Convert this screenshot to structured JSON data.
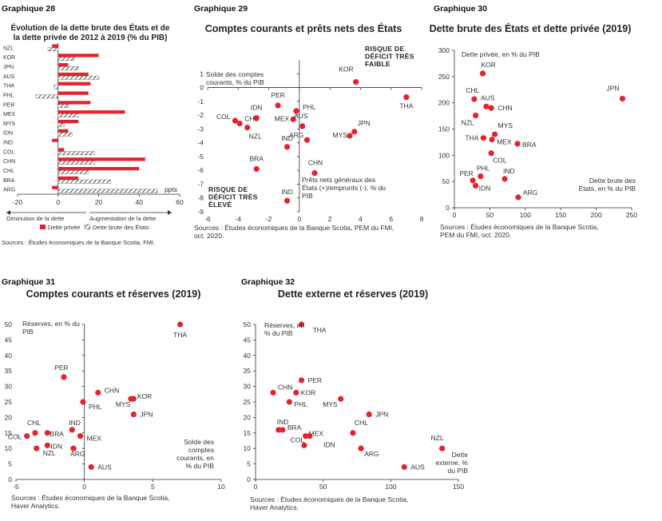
{
  "colors": {
    "red": "#e3232e",
    "hatch": "#555555"
  },
  "chart_data": [
    {
      "id": "g28",
      "number": "Graphique 28",
      "type": "bar",
      "orientation": "horizontal",
      "title_lines": [
        "Évolution de la dette brute des États et de",
        "la dette privée de 2012 à 2019 (% du PIB)"
      ],
      "categories": [
        "NZL",
        "KOR",
        "JPN",
        "AUS",
        "THA",
        "PHL",
        "PER",
        "MEX",
        "MYS",
        "IDN",
        "IND",
        "COL",
        "CHN",
        "CHL",
        "BRA",
        "ARG"
      ],
      "series": [
        {
          "name": "Dette privée",
          "values": [
            -3,
            20,
            5,
            15,
            16,
            15,
            16,
            33,
            10,
            5,
            -3,
            3,
            43,
            40,
            10,
            -3
          ]
        },
        {
          "name": "Dette brute des États",
          "values": [
            -5,
            8,
            10,
            20,
            -2,
            -11,
            5,
            10,
            3,
            7,
            0,
            18,
            18,
            15,
            26,
            49
          ]
        }
      ],
      "xlim": [
        -20,
        60
      ],
      "xticks": [
        -20,
        0,
        20,
        40,
        60
      ],
      "unit": "ppts",
      "left_note": "Diminution de la dette",
      "right_note": "Augmentation de la dette",
      "legend": [
        "Dette privée",
        "Dette brute des États"
      ],
      "source": "Sources : Études économiques de la Banque Scotia, FMI."
    },
    {
      "id": "g29",
      "number": "Graphique 29",
      "type": "scatter",
      "title": "Comptes courants et prêts nets des États",
      "ylabel_lines": [
        "Solde des comptes",
        "courants, % du PIB"
      ],
      "xlabel_lines": [
        "Prêts nets généraux des",
        "États (+)/emprunts (-), % du",
        "PIB"
      ],
      "risk_low_lines": [
        "RISQUE DE",
        "DÉFICIT TRÈS",
        "FAIBLE"
      ],
      "risk_high_lines": [
        "RISQUE DE",
        "DÉFICIT TRÈS",
        "ÉLEVÉ"
      ],
      "xlim": [
        -6,
        8
      ],
      "ylim": [
        -9,
        2
      ],
      "xticks": [
        -6,
        -4,
        -2,
        0,
        2,
        4,
        6,
        8
      ],
      "yticks": [
        1,
        0,
        -1,
        -2,
        -3,
        -4,
        -5,
        -6,
        -7,
        -8,
        -9
      ],
      "points": [
        {
          "label": "KOR",
          "x": 3.7,
          "y": 0.4
        },
        {
          "label": "THA",
          "x": 7.0,
          "y": -0.7
        },
        {
          "label": "PER",
          "x": -1.4,
          "y": -1.3
        },
        {
          "label": "PHL",
          "x": -0.2,
          "y": -1.7
        },
        {
          "label": "IDN",
          "x": -2.8,
          "y": -2.2
        },
        {
          "label": "COL",
          "x": -4.2,
          "y": -2.4
        },
        {
          "label": "CHL",
          "x": -3.9,
          "y": -2.6
        },
        {
          "label": "MEX",
          "x": -0.4,
          "y": -2.3
        },
        {
          "label": "NZL",
          "x": -3.4,
          "y": -2.9
        },
        {
          "label": "AUS",
          "x": 0.2,
          "y": -2.8
        },
        {
          "label": "JPN",
          "x": 3.6,
          "y": -3.2
        },
        {
          "label": "MYS",
          "x": 3.3,
          "y": -3.5
        },
        {
          "label": "ARG",
          "x": 0.5,
          "y": -3.8
        },
        {
          "label": "IND",
          "x": -0.8,
          "y": -4.3
        },
        {
          "label": "BRA",
          "x": -2.8,
          "y": -5.9
        },
        {
          "label": "CHN",
          "x": 1.0,
          "y": -6.2
        }
      ],
      "extra_label": {
        "text": "IND",
        "x": -0.8,
        "y": -8.2
      },
      "source_lines": [
        "Sources : Études économiques de la Banque Scotia, PEM du FMI,",
        "oct. 2020."
      ]
    },
    {
      "id": "g30",
      "number": "Graphique 30",
      "type": "scatter",
      "title": "Dette brute des États et dette privée (2019)",
      "ylabel": "Dette privée, en % du PIB",
      "xlabel_lines": [
        "Dette brute des",
        "États, en % du PIB"
      ],
      "xlim": [
        0,
        250
      ],
      "ylim": [
        0,
        300
      ],
      "xticks": [
        0,
        50,
        100,
        150,
        200,
        250
      ],
      "yticks": [
        0,
        50,
        100,
        150,
        200,
        250,
        300
      ],
      "points": [
        {
          "label": "KOR",
          "x": 40,
          "y": 256
        },
        {
          "label": "JPN",
          "x": 237,
          "y": 208
        },
        {
          "label": "CHL",
          "x": 28,
          "y": 207
        },
        {
          "label": "AUS",
          "x": 45,
          "y": 193
        },
        {
          "label": "CHN",
          "x": 52,
          "y": 190
        },
        {
          "label": "NZL",
          "x": 30,
          "y": 176
        },
        {
          "label": "MYS",
          "x": 57,
          "y": 140
        },
        {
          "label": "THA",
          "x": 41,
          "y": 133
        },
        {
          "label": "MEX",
          "x": 53,
          "y": 130
        },
        {
          "label": "BRA",
          "x": 89,
          "y": 122
        },
        {
          "label": "COL",
          "x": 52,
          "y": 104
        },
        {
          "label": "PHL",
          "x": 37,
          "y": 60
        },
        {
          "label": "IND",
          "x": 71,
          "y": 55
        },
        {
          "label": "PER",
          "x": 26,
          "y": 52
        },
        {
          "label": "IDN",
          "x": 30,
          "y": 42
        },
        {
          "label": "ARG",
          "x": 90,
          "y": 20
        }
      ],
      "source_lines": [
        "Sources : Études économiques de la Banque Scotia,",
        "PEM du FMI, oct. 2020."
      ]
    },
    {
      "id": "g31",
      "number": "Graphique 31",
      "type": "scatter",
      "title": "Comptes courants et réserves (2019)",
      "ylabel_lines": [
        "Réserves, en % du",
        "PIB"
      ],
      "xlabel_lines": [
        "Solde des",
        "comptes",
        "courants, en",
        "% du PIB"
      ],
      "xlim": [
        -5,
        10
      ],
      "ylim": [
        0,
        50
      ],
      "xticks": [
        -5,
        0,
        5,
        10
      ],
      "yticks": [
        0,
        5,
        10,
        15,
        20,
        25,
        30,
        35,
        40,
        45,
        50
      ],
      "points": [
        {
          "label": "THA",
          "x": 7.0,
          "y": 50
        },
        {
          "label": "PER",
          "x": -1.5,
          "y": 33
        },
        {
          "label": "CHN",
          "x": 1.0,
          "y": 28
        },
        {
          "label": "KOR",
          "x": 3.4,
          "y": 26
        },
        {
          "label": "PHL",
          "x": -0.1,
          "y": 25
        },
        {
          "label": "MYS",
          "x": 3.6,
          "y": 26
        },
        {
          "label": "JPN",
          "x": 3.6,
          "y": 21
        },
        {
          "label": "IND",
          "x": -0.9,
          "y": 16
        },
        {
          "label": "CHL",
          "x": -3.6,
          "y": 15
        },
        {
          "label": "BRA",
          "x": -2.7,
          "y": 15
        },
        {
          "label": "MEX",
          "x": -0.3,
          "y": 14
        },
        {
          "label": "COL",
          "x": -4.2,
          "y": 14
        },
        {
          "label": "IDN",
          "x": -2.7,
          "y": 11
        },
        {
          "label": "NZL",
          "x": -3.5,
          "y": 10
        },
        {
          "label": "ARG",
          "x": -0.8,
          "y": 10
        },
        {
          "label": "AUS",
          "x": 0.5,
          "y": 4
        }
      ],
      "source_lines": [
        "Sources : Études économiques de la Banque Scotia,",
        "Haver Analytics."
      ]
    },
    {
      "id": "g32",
      "number": "Graphique 32",
      "type": "scatter",
      "title": "Dette externe et réserves (2019)",
      "ylabel_lines": [
        "Réserves, en",
        "% du PIB"
      ],
      "xlabel_lines": [
        "Dette",
        "externe, %",
        "du PIB"
      ],
      "xlim": [
        0,
        150
      ],
      "ylim": [
        0,
        50
      ],
      "xticks": [
        0,
        50,
        100,
        150
      ],
      "yticks": [
        0,
        5,
        10,
        15,
        20,
        25,
        30,
        35,
        40,
        45,
        50
      ],
      "points": [
        {
          "label": "THA",
          "x": 34,
          "y": 50
        },
        {
          "label": "PER",
          "x": 34,
          "y": 32
        },
        {
          "label": "CHN",
          "x": 13,
          "y": 28
        },
        {
          "label": "KOR",
          "x": 30,
          "y": 28
        },
        {
          "label": "PHL",
          "x": 25,
          "y": 25
        },
        {
          "label": "MYS",
          "x": 63,
          "y": 26
        },
        {
          "label": "JPN",
          "x": 84,
          "y": 21
        },
        {
          "label": "IND",
          "x": 17,
          "y": 16
        },
        {
          "label": "BRA",
          "x": 20,
          "y": 16
        },
        {
          "label": "CHL",
          "x": 72,
          "y": 15
        },
        {
          "label": "MEX",
          "x": 37,
          "y": 14
        },
        {
          "label": "COL",
          "x": 40,
          "y": 14
        },
        {
          "label": "IDN",
          "x": 36,
          "y": 11
        },
        {
          "label": "ARG",
          "x": 78,
          "y": 10
        },
        {
          "label": "NZL",
          "x": 138,
          "y": 10
        },
        {
          "label": "AUS",
          "x": 110,
          "y": 4
        }
      ],
      "source_lines": [
        "Sources : Études économiques de la Banque Scotia,",
        "Haver Analytics."
      ]
    }
  ]
}
